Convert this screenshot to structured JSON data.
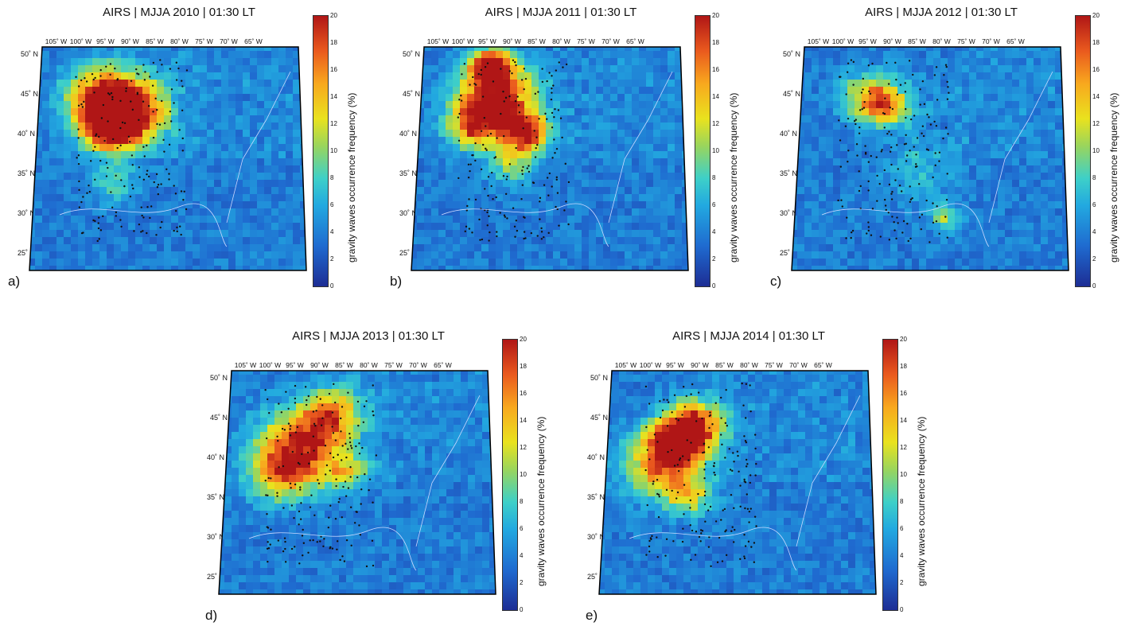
{
  "panels": [
    {
      "title": "AIRS | MJJA 2010 | 01:30 LT",
      "label": "a)"
    },
    {
      "title": "AIRS | MJJA 2011 | 01:30 LT",
      "label": "b)"
    },
    {
      "title": "AIRS | MJJA 2012 | 01:30 LT",
      "label": "c)"
    },
    {
      "title": "AIRS | MJJA 2013 | 01:30 LT",
      "label": "d)"
    },
    {
      "title": "AIRS | MJJA 2014 | 01:30 LT",
      "label": "e)"
    }
  ],
  "longitude_labels": [
    "105˚ W",
    "100˚ W",
    "95˚ W",
    "90˚ W",
    "85˚ W",
    "80˚ W",
    "75˚ W",
    "70˚ W",
    "65˚ W"
  ],
  "latitude_labels": [
    "50˚ N",
    "45˚ N",
    "40˚ N",
    "35˚ N",
    "30˚ N",
    "25˚ N"
  ],
  "colorbar": {
    "label": "gravity waves occurrence frequency (%)",
    "ticks": [
      "20",
      "18",
      "16",
      "14",
      "12",
      "10",
      "8",
      "6",
      "4",
      "2",
      "0"
    ],
    "min": 0,
    "max": 20
  },
  "colors": {
    "low": "#1d2d94",
    "mid": "#3ed0c8",
    "high": "#b01616"
  }
}
